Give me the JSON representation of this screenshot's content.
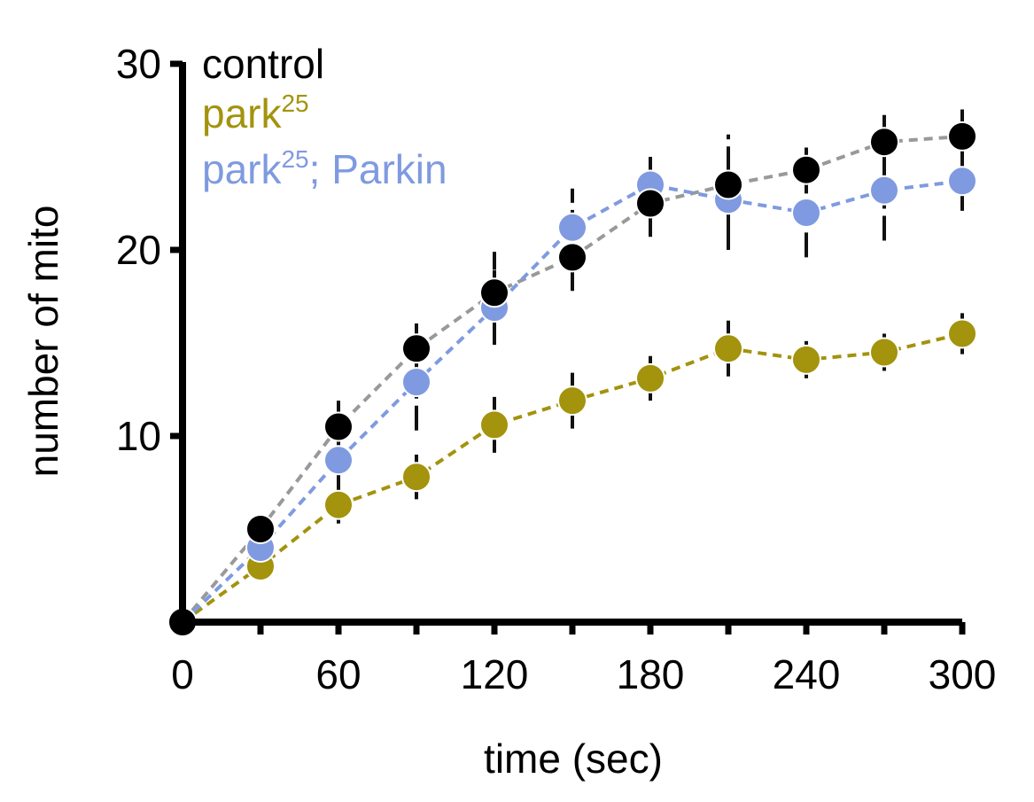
{
  "chart_data": {
    "type": "line",
    "xlabel": "time (sec)",
    "ylabel": "number of mito",
    "xlim": [
      0,
      300
    ],
    "ylim": [
      0,
      30
    ],
    "xticks": [
      0,
      30,
      60,
      90,
      120,
      150,
      180,
      210,
      240,
      270,
      300
    ],
    "xtick_labels": [
      "0",
      "",
      "60",
      "",
      "120",
      "",
      "180",
      "",
      "240",
      "",
      "300"
    ],
    "yticks": [
      10,
      20,
      30
    ],
    "ytick_labels": [
      "10",
      "20",
      "30"
    ],
    "grid": false,
    "legend_position": "top-left",
    "x": [
      0,
      30,
      60,
      90,
      120,
      150,
      180,
      210,
      240,
      270,
      300
    ],
    "series": [
      {
        "name": "control",
        "legend_main": "control",
        "legend_sup": "",
        "legend_after": "",
        "color": "#000000",
        "line_color": "#999999",
        "values": [
          0,
          5.0,
          10.5,
          14.7,
          17.7,
          19.6,
          22.5,
          23.5,
          24.3,
          25.8,
          26.1
        ],
        "errors": [
          0,
          0.8,
          1.4,
          1.7,
          2.2,
          1.8,
          1.8,
          2.7,
          1.2,
          1.6,
          1.6
        ]
      },
      {
        "name": "park25",
        "legend_main": "park",
        "legend_sup": "25",
        "legend_after": "",
        "color": "#a3930d",
        "line_color": "#a3930d",
        "values": [
          0,
          3.0,
          6.3,
          7.8,
          10.6,
          11.9,
          13.1,
          14.7,
          14.1,
          14.5,
          15.5
        ],
        "errors": [
          0,
          0.5,
          1.0,
          1.2,
          1.5,
          1.5,
          1.2,
          1.5,
          1.0,
          1.0,
          1.1
        ]
      },
      {
        "name": "park25; Parkin",
        "legend_main": "park",
        "legend_sup": "25",
        "legend_after": "; Parkin",
        "color": "#7f9ae0",
        "line_color": "#7f9ae0",
        "values": [
          0,
          4.0,
          8.7,
          12.9,
          16.9,
          21.2,
          23.5,
          22.7,
          22.0,
          23.2,
          23.7
        ],
        "errors": [
          0,
          0.7,
          1.8,
          2.6,
          2.0,
          2.1,
          1.5,
          2.7,
          2.4,
          2.7,
          1.6
        ]
      }
    ]
  }
}
